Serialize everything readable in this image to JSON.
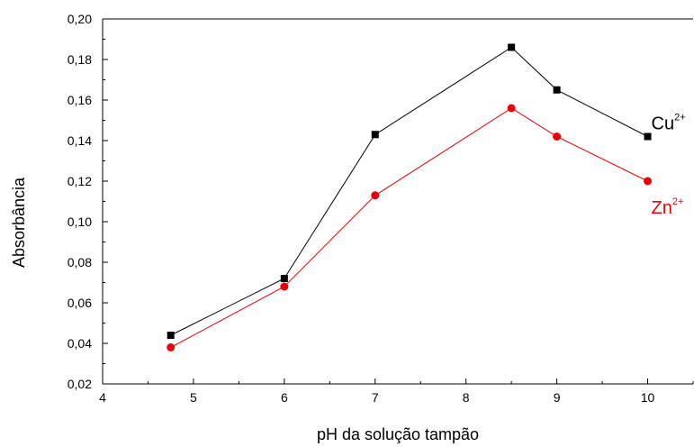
{
  "chart_data": {
    "type": "line",
    "title": "",
    "xlabel": "pH da solução tampão",
    "ylabel": "Absorbância",
    "xlim": [
      4,
      10.5
    ],
    "ylim": [
      0.02,
      0.2
    ],
    "x_ticks": [
      4,
      5,
      6,
      7,
      8,
      9,
      10
    ],
    "x_tick_labels": [
      "4",
      "5",
      "6",
      "7",
      "8",
      "9",
      "10"
    ],
    "y_ticks": [
      0.02,
      0.04,
      0.06,
      0.08,
      0.1,
      0.12,
      0.14,
      0.16,
      0.18,
      0.2
    ],
    "y_tick_labels": [
      "0,02",
      "0,04",
      "0,06",
      "0,08",
      "0,10",
      "0,12",
      "0,14",
      "0,16",
      "0,18",
      "0,20"
    ],
    "grid": false,
    "legend": "inline labels at right end of each series",
    "series": [
      {
        "name": "Cu",
        "superscript": "2+",
        "color": "#000000",
        "marker": "square",
        "x": [
          4.75,
          6,
          7,
          8.5,
          9,
          10
        ],
        "y": [
          0.044,
          0.072,
          0.143,
          0.186,
          0.165,
          0.142
        ]
      },
      {
        "name": "Zn",
        "superscript": "2+",
        "color": "#e8000b",
        "marker": "circle",
        "x": [
          4.75,
          6,
          7,
          8.5,
          9,
          10
        ],
        "y": [
          0.038,
          0.068,
          0.113,
          0.156,
          0.142,
          0.12
        ]
      }
    ]
  }
}
